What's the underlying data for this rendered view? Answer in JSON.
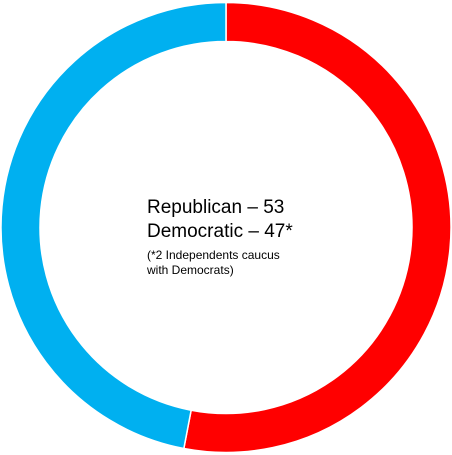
{
  "chart_data": {
    "type": "pie",
    "style": "donut",
    "categories": [
      "Republican",
      "Democratic"
    ],
    "values": [
      53,
      47
    ],
    "colors": [
      "#ff0000",
      "#00b0f0"
    ],
    "title": "",
    "annotations": {
      "line1": "Republican – 53",
      "line2": "Democratic – 47*",
      "note": "(*2 Independents caucus\nwith Democrats)"
    },
    "legend": "none"
  }
}
